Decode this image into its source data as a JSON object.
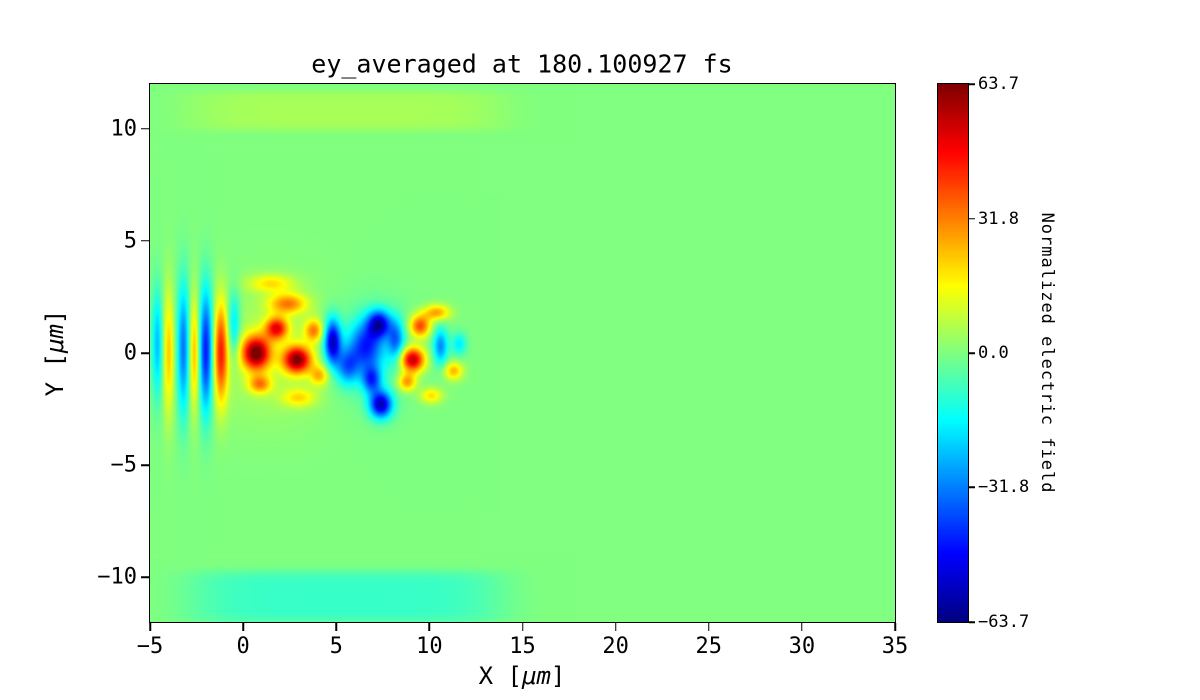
{
  "chart_data": {
    "type": "heatmap",
    "title": "ey_averaged at 180.100927 fs",
    "xlabel": "X [μm]",
    "ylabel": "Y [μm]",
    "xlabel_parts": {
      "pre": "X [",
      "units": "μm",
      "post": "]"
    },
    "ylabel_parts": {
      "pre": "Y [",
      "units": "μm",
      "post": "]"
    },
    "xlim": [
      -5,
      35
    ],
    "ylim": [
      -12,
      12
    ],
    "x_ticks": [
      -5,
      0,
      5,
      10,
      15,
      20,
      25,
      30,
      35
    ],
    "x_tick_labels": [
      "−5",
      "0",
      "5",
      "10",
      "15",
      "20",
      "25",
      "30",
      "35"
    ],
    "y_ticks": [
      -10,
      -5,
      0,
      5,
      10
    ],
    "y_tick_labels": [
      "−10",
      "−5",
      "0",
      "5",
      "10"
    ],
    "grid": false,
    "legend": "none",
    "colormap": "jet",
    "background_value": 0.0,
    "background_color_at_zero": "#80ff80",
    "colorbar": {
      "label": "Normalized electric field",
      "vmin": -63.7,
      "vmax": 63.7,
      "ticks": [
        63.7,
        31.8,
        0.0,
        -31.8,
        -63.7
      ],
      "tick_labels": [
        "63.7",
        "31.8",
        "0.0",
        "−31.8",
        "−63.7"
      ]
    },
    "features": [
      {
        "x": -4.6,
        "y": 0.4,
        "sx": 0.3,
        "sy": 2.4,
        "amp": -24
      },
      {
        "x": -4.0,
        "y": 0.0,
        "sx": 0.3,
        "sy": 2.8,
        "amp": 22
      },
      {
        "x": -3.2,
        "y": 0.2,
        "sx": 0.35,
        "sy": 2.9,
        "amp": -34
      },
      {
        "x": -2.6,
        "y": 0.0,
        "sx": 0.3,
        "sy": 2.5,
        "amp": 27
      },
      {
        "x": -2.0,
        "y": 0.1,
        "sx": 0.4,
        "sy": 2.7,
        "amp": -48
      },
      {
        "x": -1.2,
        "y": 0.0,
        "sx": 0.4,
        "sy": 2.2,
        "amp": 42
      },
      {
        "x": -0.5,
        "y": 1.2,
        "sx": 0.35,
        "sy": 1.5,
        "amp": -22
      },
      {
        "x": 0.7,
        "y": 0.0,
        "sx": 0.75,
        "sy": 0.75,
        "amp": 62
      },
      {
        "x": 1.8,
        "y": 1.1,
        "sx": 0.6,
        "sy": 0.5,
        "amp": 46
      },
      {
        "x": 2.9,
        "y": -0.3,
        "sx": 0.75,
        "sy": 0.6,
        "amp": 60
      },
      {
        "x": 2.4,
        "y": 2.2,
        "sx": 1.0,
        "sy": 0.45,
        "amp": 30
      },
      {
        "x": 0.9,
        "y": -1.4,
        "sx": 0.6,
        "sy": 0.4,
        "amp": 28
      },
      {
        "x": 3.8,
        "y": 1.0,
        "sx": 0.5,
        "sy": 0.5,
        "amp": 30
      },
      {
        "x": 1.5,
        "y": 3.1,
        "sx": 1.2,
        "sy": 0.4,
        "amp": 18
      },
      {
        "x": 3.0,
        "y": -2.0,
        "sx": 0.9,
        "sy": 0.4,
        "amp": 18
      },
      {
        "x": 4.1,
        "y": -1.0,
        "sx": 0.5,
        "sy": 0.45,
        "amp": 24
      },
      {
        "x": 4.8,
        "y": 0.5,
        "sx": 0.45,
        "sy": 1.0,
        "amp": -55
      },
      {
        "x": 5.6,
        "y": -0.6,
        "sx": 0.6,
        "sy": 0.8,
        "amp": -30
      },
      {
        "x": 6.6,
        "y": 0.3,
        "sx": 0.9,
        "sy": 1.1,
        "amp": -38
      },
      {
        "x": 7.3,
        "y": 1.3,
        "sx": 0.6,
        "sy": 0.6,
        "amp": -48
      },
      {
        "x": 7.4,
        "y": -2.3,
        "sx": 0.6,
        "sy": 0.6,
        "amp": -55
      },
      {
        "x": 6.9,
        "y": -1.2,
        "sx": 0.5,
        "sy": 0.6,
        "amp": -35
      },
      {
        "x": 8.2,
        "y": 0.6,
        "sx": 0.45,
        "sy": 0.9,
        "amp": -30
      },
      {
        "x": 9.1,
        "y": -0.3,
        "sx": 0.65,
        "sy": 0.55,
        "amp": 58
      },
      {
        "x": 9.5,
        "y": 1.2,
        "sx": 0.55,
        "sy": 0.5,
        "amp": 40
      },
      {
        "x": 8.8,
        "y": -1.3,
        "sx": 0.5,
        "sy": 0.4,
        "amp": 30
      },
      {
        "x": 10.4,
        "y": 1.8,
        "sx": 0.7,
        "sy": 0.35,
        "amp": 28
      },
      {
        "x": 10.6,
        "y": 0.3,
        "sx": 0.4,
        "sy": 0.8,
        "amp": -30
      },
      {
        "x": 11.3,
        "y": -0.8,
        "sx": 0.5,
        "sy": 0.4,
        "amp": 25
      },
      {
        "x": 11.6,
        "y": 0.4,
        "sx": 0.4,
        "sy": 0.5,
        "amp": -18
      },
      {
        "x": 10.1,
        "y": -1.9,
        "sx": 0.6,
        "sy": 0.35,
        "amp": 20
      },
      {
        "x": 1.5,
        "y": 0.0,
        "sx": 3.5,
        "sy": 2.8,
        "amp": 7
      },
      {
        "x": 6.8,
        "y": 0.0,
        "sx": 2.2,
        "sy": 2.2,
        "amp": -8
      },
      {
        "x": 5.5,
        "y": 10.8,
        "sx": 8.5,
        "sy": 0.9,
        "amp": 5,
        "p": 6
      },
      {
        "x": 5.5,
        "y": -10.9,
        "sx": 8.5,
        "sy": 1.2,
        "amp": -9,
        "p": 6
      }
    ]
  }
}
